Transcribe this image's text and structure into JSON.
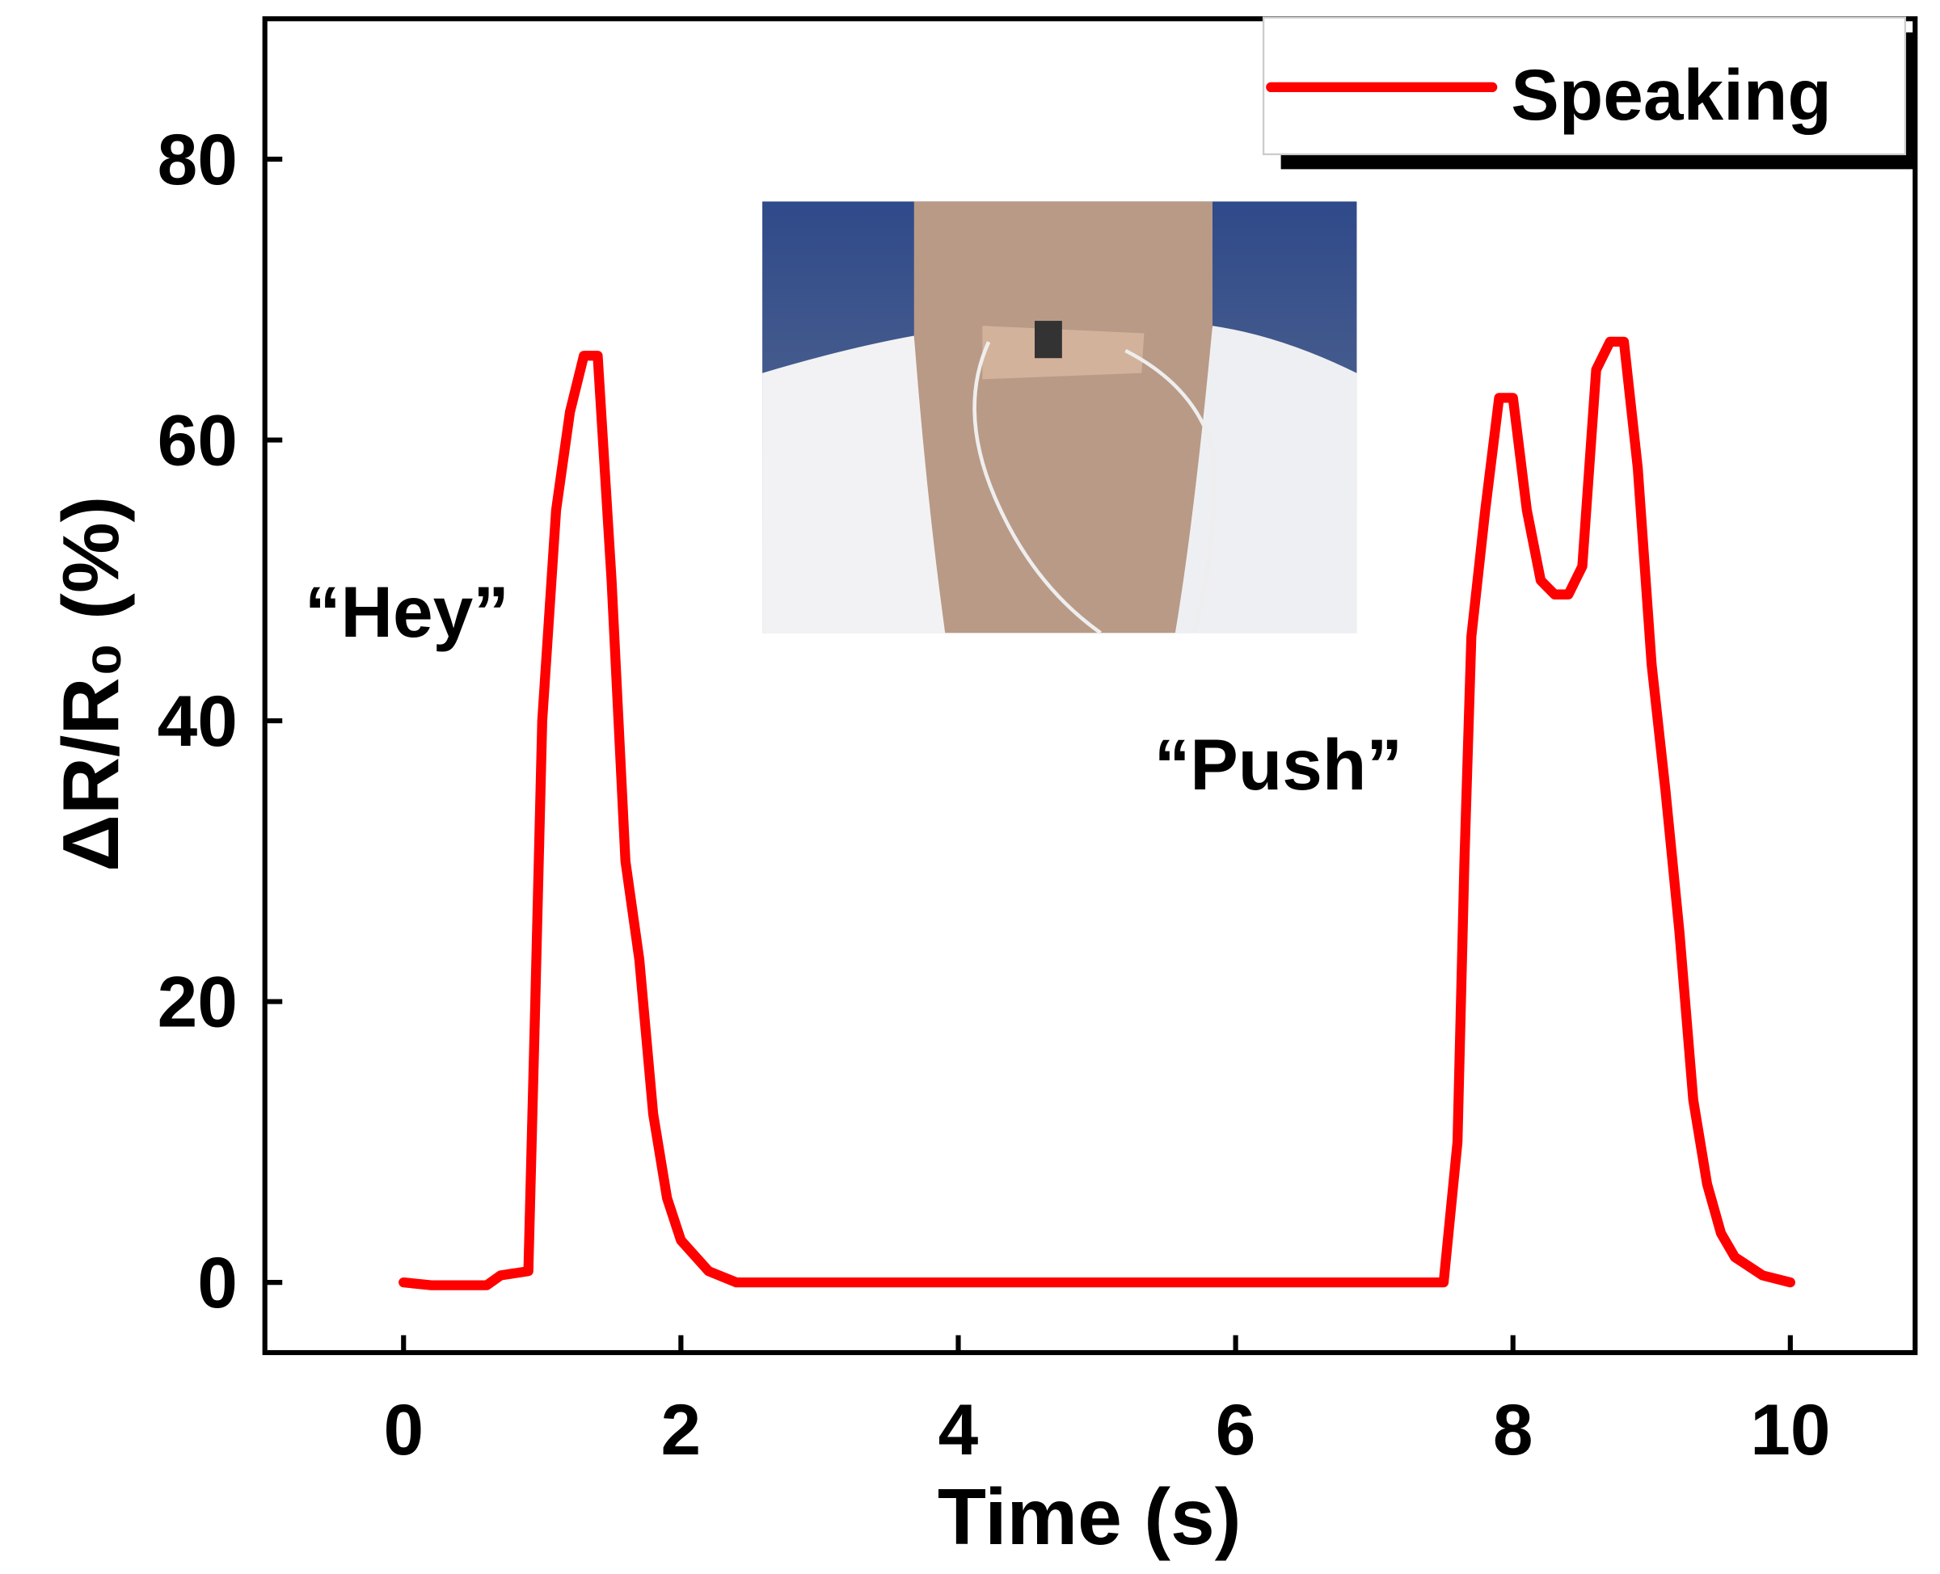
{
  "chart_data": {
    "type": "line",
    "xlabel": "Time (s)",
    "ylabel": "ΔR/R₀ (%)",
    "annotations": [
      "“Hey”",
      "“Push”"
    ],
    "legend": "upper right",
    "x": [
      0,
      0.2,
      0.6,
      0.7,
      0.9,
      0.95,
      1.0,
      1.1,
      1.2,
      1.3,
      1.4,
      1.5,
      1.6,
      1.7,
      1.8,
      1.9,
      2.0,
      2.2,
      2.4,
      7.5,
      7.6,
      7.65,
      7.7,
      7.8,
      7.9,
      8.0,
      8.1,
      8.2,
      8.3,
      8.4,
      8.5,
      8.6,
      8.7,
      8.8,
      8.9,
      9.0,
      9.1,
      9.2,
      9.3,
      9.4,
      9.5,
      9.6,
      9.8,
      10
    ],
    "series": [
      {
        "name": "Speaking",
        "color": "#ff0000",
        "values": [
          0,
          -0.2,
          -0.2,
          0.5,
          0.8,
          20,
          40,
          55,
          62,
          66,
          66,
          50,
          30,
          23,
          12,
          6,
          3,
          0.8,
          0,
          0,
          10,
          30,
          46,
          55,
          63,
          63,
          55,
          50,
          49,
          49,
          51,
          65,
          67,
          67,
          58,
          44,
          35,
          25,
          13,
          7,
          3.5,
          1.8,
          0.5,
          0
        ]
      }
    ],
    "xlim": [
      -1,
      10.9
    ],
    "xticks": [
      0,
      2,
      4,
      6,
      8,
      10
    ],
    "ylim": [
      -5,
      90
    ],
    "yticks": [
      0,
      20,
      40,
      60,
      80
    ]
  }
}
